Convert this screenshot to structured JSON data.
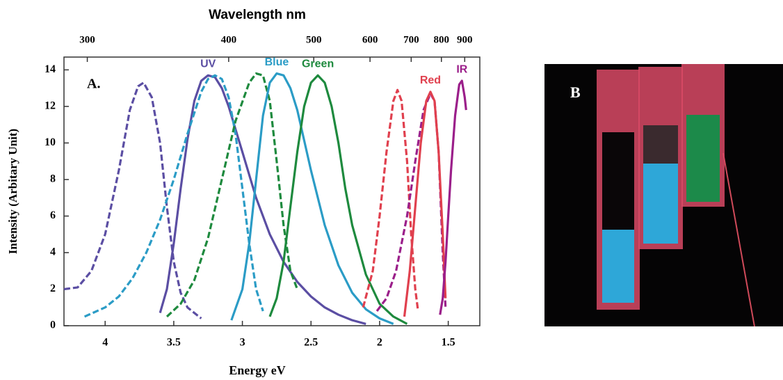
{
  "chart_data": {
    "type": "line",
    "title": "Wavelength nm",
    "x_label": "Energy eV",
    "y_label": "Intensity (Arbitary Unit)",
    "panel_label": "A.",
    "xlim": [
      4.3,
      1.27
    ],
    "ylim": [
      0,
      14.7
    ],
    "xticks": [
      4.0,
      3.5,
      3.0,
      2.5,
      2.0,
      1.5
    ],
    "yticks": [
      0,
      2,
      4,
      6,
      8,
      10,
      12,
      14
    ],
    "x2ticks": [
      {
        "value": 4.13,
        "label": "300"
      },
      {
        "value": 3.1,
        "label": "400"
      },
      {
        "value": 2.48,
        "label": "500"
      },
      {
        "value": 2.07,
        "label": "600"
      },
      {
        "value": 1.77,
        "label": "700"
      },
      {
        "value": 1.55,
        "label": "800"
      },
      {
        "value": 1.38,
        "label": "900"
      }
    ],
    "series": [
      {
        "color": "#5b4ea3",
        "dashed": true,
        "x": [
          4.3,
          4.2,
          4.1,
          4.0,
          3.9,
          3.82,
          3.76,
          3.72,
          3.66,
          3.6,
          3.55,
          3.5,
          3.45,
          3.4,
          3.3
        ],
        "values": [
          2.0,
          2.1,
          3.0,
          5.0,
          8.5,
          11.8,
          13.1,
          13.3,
          12.5,
          10.0,
          6.5,
          3.5,
          1.8,
          1.0,
          0.4
        ]
      },
      {
        "name": "UV",
        "color": "#5b4ea3",
        "dashed": false,
        "x": [
          3.6,
          3.55,
          3.5,
          3.45,
          3.4,
          3.35,
          3.3,
          3.25,
          3.2,
          3.15,
          3.1,
          3.0,
          2.9,
          2.8,
          2.7,
          2.6,
          2.5,
          2.4,
          2.3,
          2.2,
          2.1
        ],
        "values": [
          0.7,
          2.0,
          4.5,
          7.5,
          10.2,
          12.3,
          13.4,
          13.7,
          13.6,
          13.0,
          12.0,
          9.5,
          7.0,
          5.0,
          3.5,
          2.4,
          1.6,
          1.0,
          0.6,
          0.3,
          0.1
        ]
      },
      {
        "color": "#2b9cc6",
        "dashed": true,
        "x": [
          4.15,
          4.0,
          3.9,
          3.8,
          3.7,
          3.6,
          3.5,
          3.4,
          3.3,
          3.25,
          3.2,
          3.15,
          3.1,
          3.05,
          3.0,
          2.95,
          2.9,
          2.85
        ],
        "values": [
          0.5,
          1.0,
          1.6,
          2.6,
          4.0,
          5.8,
          8.0,
          10.5,
          12.8,
          13.5,
          13.7,
          13.5,
          12.5,
          10.5,
          7.5,
          4.5,
          2.0,
          0.8
        ]
      },
      {
        "color": "#1e8a3e",
        "dashed": true,
        "x": [
          3.55,
          3.45,
          3.35,
          3.25,
          3.15,
          3.05,
          2.95,
          2.9,
          2.85,
          2.8,
          2.75,
          2.7,
          2.65,
          2.6
        ],
        "values": [
          0.5,
          1.2,
          2.5,
          4.8,
          8.0,
          11.2,
          13.3,
          13.8,
          13.7,
          12.3,
          9.0,
          5.5,
          3.0,
          2.0
        ]
      },
      {
        "name": "Blue",
        "color": "#2b9cc6",
        "dashed": false,
        "x": [
          3.08,
          3.0,
          2.95,
          2.9,
          2.85,
          2.8,
          2.75,
          2.7,
          2.65,
          2.6,
          2.5,
          2.4,
          2.3,
          2.2,
          2.1,
          2.0,
          1.9
        ],
        "values": [
          0.3,
          2.0,
          4.5,
          8.0,
          11.5,
          13.3,
          13.8,
          13.7,
          13.0,
          11.8,
          8.5,
          5.5,
          3.3,
          1.8,
          0.9,
          0.4,
          0.1
        ]
      },
      {
        "name": "Green",
        "color": "#1e8a3e",
        "dashed": false,
        "x": [
          2.8,
          2.75,
          2.7,
          2.65,
          2.6,
          2.55,
          2.5,
          2.45,
          2.4,
          2.35,
          2.3,
          2.25,
          2.2,
          2.1,
          2.0,
          1.9,
          1.8
        ],
        "values": [
          0.5,
          1.5,
          3.5,
          6.5,
          9.5,
          12.0,
          13.3,
          13.7,
          13.3,
          12.0,
          10.0,
          7.5,
          5.5,
          2.8,
          1.2,
          0.5,
          0.1
        ]
      },
      {
        "color": "#e0404e",
        "dashed": true,
        "x": [
          2.12,
          2.05,
          2.0,
          1.95,
          1.9,
          1.87,
          1.84,
          1.8,
          1.77,
          1.74,
          1.72
        ],
        "values": [
          1.0,
          3.0,
          6.0,
          9.5,
          12.3,
          12.9,
          12.3,
          9.0,
          5.0,
          2.0,
          0.8
        ]
      },
      {
        "color": "#9b1f8a",
        "dashed": true,
        "x": [
          2.02,
          1.95,
          1.88,
          1.8,
          1.74,
          1.68,
          1.63,
          1.6,
          1.57,
          1.54,
          1.52
        ],
        "values": [
          0.8,
          1.5,
          3.0,
          6.0,
          9.0,
          11.8,
          12.7,
          12.3,
          9.5,
          4.0,
          1.0
        ]
      },
      {
        "name": "Red",
        "color": "#e0404e",
        "dashed": false,
        "x": [
          1.82,
          1.78,
          1.74,
          1.7,
          1.66,
          1.63,
          1.6,
          1.57,
          1.54,
          1.52
        ],
        "values": [
          0.5,
          3.0,
          6.5,
          10.0,
          12.3,
          12.8,
          12.3,
          9.5,
          5.0,
          1.5
        ]
      },
      {
        "name": "IR",
        "color": "#9b1f8a",
        "dashed": false,
        "x": [
          1.56,
          1.54,
          1.52,
          1.5,
          1.48,
          1.45,
          1.42,
          1.4,
          1.38,
          1.37
        ],
        "values": [
          0.6,
          1.5,
          3.5,
          6.0,
          8.5,
          11.5,
          13.2,
          13.4,
          12.5,
          11.8
        ]
      }
    ]
  },
  "photo_label": "B"
}
